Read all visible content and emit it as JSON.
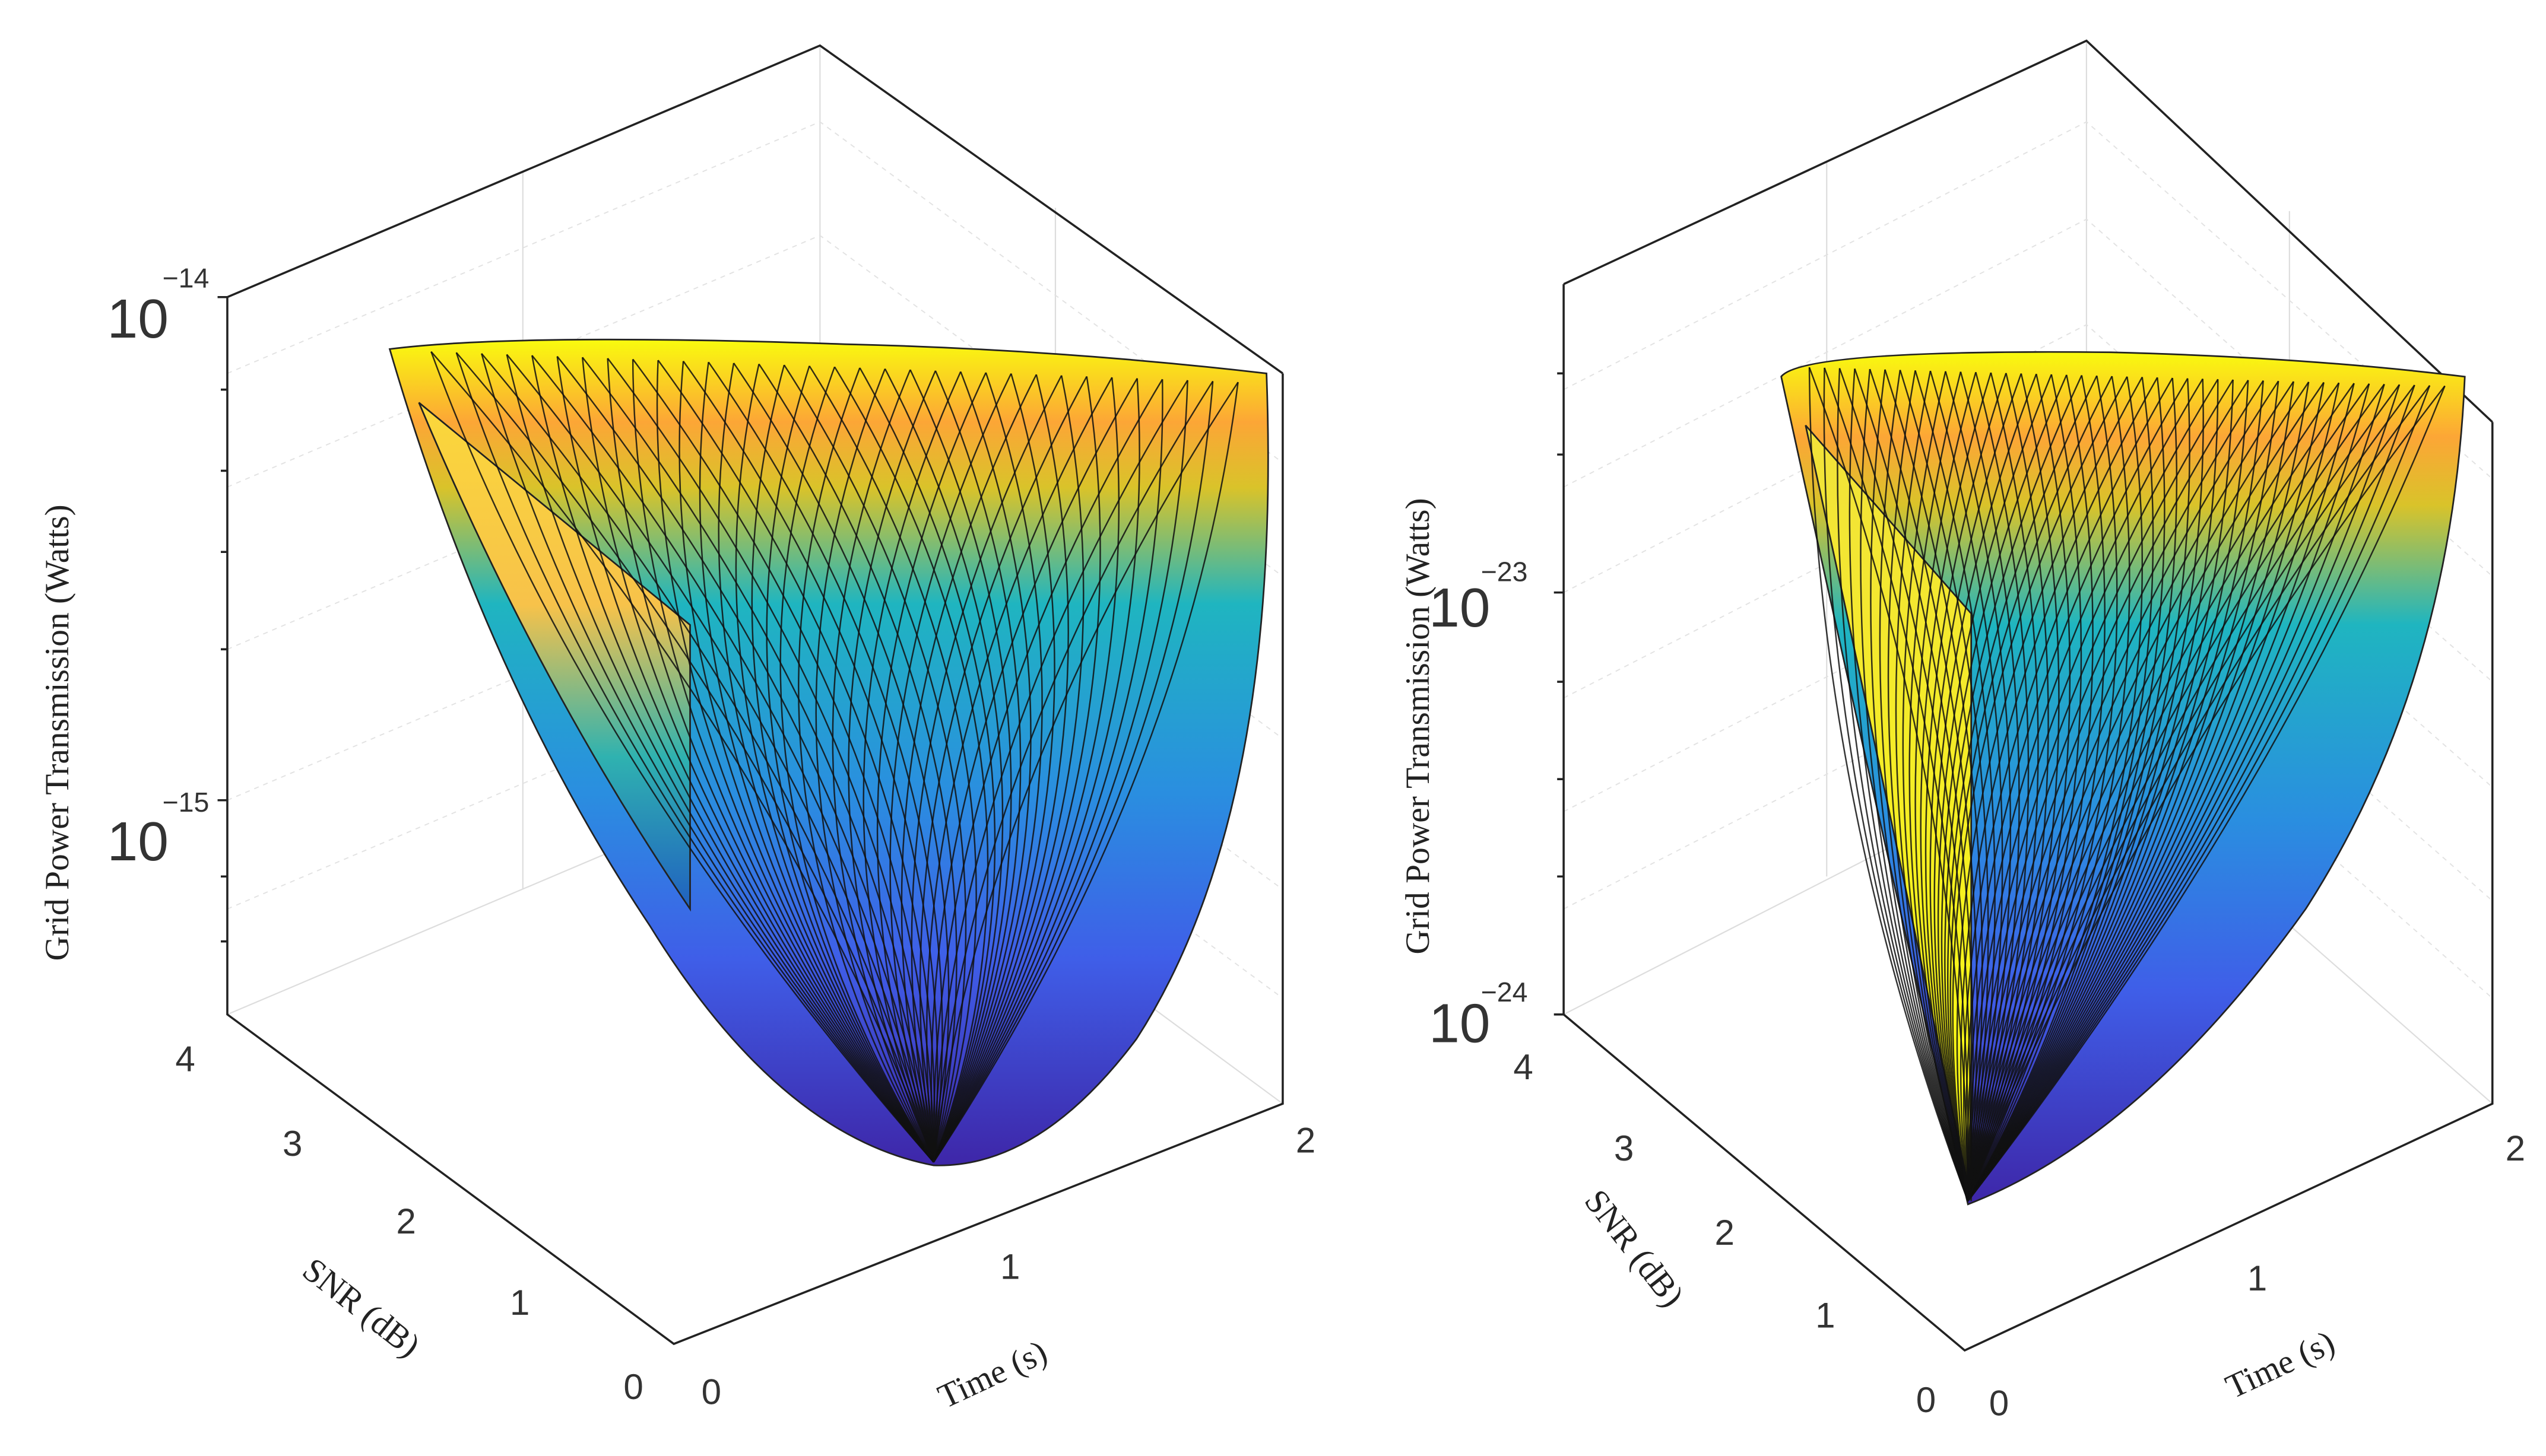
{
  "chart_data": [
    {
      "type": "surface",
      "zlabel": "Grid Power Transmission (Watts)",
      "xlabel": "Time (s)",
      "ylabel": "SNR (dB)",
      "x_ticks": [
        "0",
        "1",
        "2"
      ],
      "y_ticks": [
        "0",
        "1",
        "2",
        "3",
        "4"
      ],
      "z_ticks": [
        {
          "base": "10",
          "exp": "−14"
        },
        {
          "base": "10",
          "exp": "−15"
        }
      ],
      "xlim": [
        0,
        2
      ],
      "ylim": [
        0,
        4
      ],
      "zscale": "log",
      "grid": true,
      "colormap": "parula",
      "colors": {
        "high": "#f9fb0e",
        "mid_high": "#fca636",
        "mid": "#1fb5c0",
        "low": "#3f5ee8",
        "lowest": "#3e26a8"
      }
    },
    {
      "type": "surface",
      "zlabel": "Grid Power Transmission (Watts)",
      "xlabel": "Time (s)",
      "ylabel": "SNR (dB)",
      "x_ticks": [
        "0",
        "1",
        "2"
      ],
      "y_ticks": [
        "0",
        "1",
        "2",
        "3",
        "4"
      ],
      "z_ticks": [
        {
          "base": "10",
          "exp": "−23"
        },
        {
          "base": "10",
          "exp": "−24"
        }
      ],
      "xlim": [
        0,
        2
      ],
      "ylim": [
        0,
        4
      ],
      "zscale": "log",
      "grid": true,
      "colormap": "parula",
      "colors": {
        "high": "#f9fb0e",
        "mid_high": "#fca636",
        "mid": "#1fb5c0",
        "low": "#3f5ee8",
        "lowest": "#3e26a8"
      }
    }
  ]
}
